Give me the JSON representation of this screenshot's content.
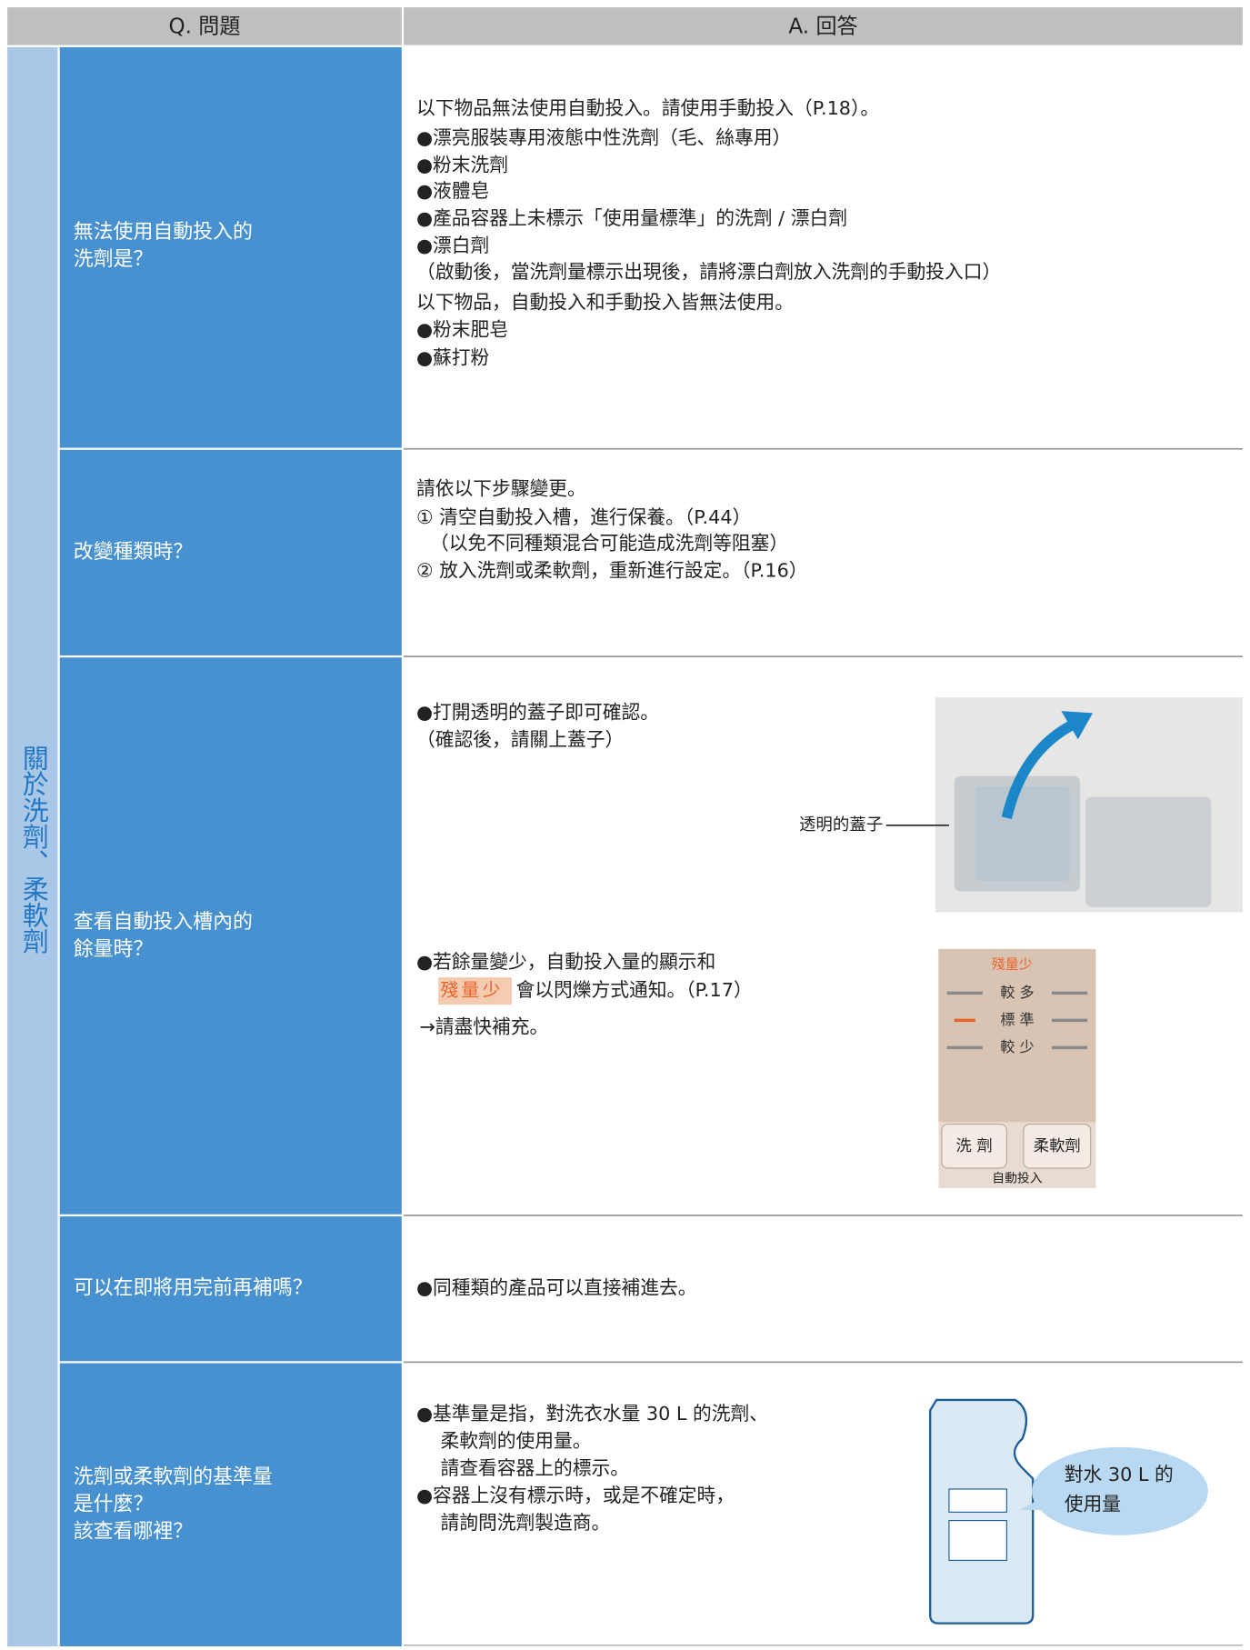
{
  "header": {
    "question": "Q. 問題",
    "answer": "A. 回答"
  },
  "section": "關於洗劑、柔軟劑",
  "rows": [
    {
      "question": [
        "無法使用自動投入的",
        "洗劑是？"
      ],
      "answer": [
        "以下物品無法使用自動投入。請使用手動投入（P.18）。",
        "●漂亮服裝專用液態中性洗劑（毛、絲專用）",
        "●粉末洗劑",
        "●液體皂",
        "●產品容器上未標示「使用量標準」的洗劑 / 漂白劑",
        "●漂白劑",
        "（啟動後，當洗劑量標示出現後，請將漂白劑放入洗劑的手動投入口）",
        "以下物品，自動投入和手動投入皆無法使用。",
        "●粉末肥皂",
        "●蘇打粉"
      ]
    },
    {
      "question": [
        "改變種類時？"
      ],
      "answer": [
        "請依以下步驟變更。",
        "① 清空自動投入槽，進行保養。（P.44）",
        "（以免不同種類混合可能造成洗劑等阻塞）",
        "② 放入洗劑或柔軟劑，重新進行設定。（P.16）"
      ]
    },
    {
      "question": [
        "查看自動投入槽內的",
        "餘量時？"
      ],
      "answer": [
        "●打開透明的蓋子即可確認。",
        "（確認後，請關上蓋子）",
        "●若餘量變少，自動投入量的顯示和",
        {
          "highlight": "殘量少",
          "text": "會以閃爍方式通知。（P.17）"
        },
        "→請盡快補充。"
      ]
    },
    {
      "question": [
        "可以在即將用完前再補嗎？"
      ],
      "answer": [
        "●同種類的產品可以直接補進去。"
      ]
    },
    {
      "question": [
        "洗劑或柔軟劑的基準量",
        "是什麼？",
        "該查看哪裡？"
      ],
      "answer": [
        "●基準量是指，對洗衣水量 30 L 的洗劑、",
        "柔軟劑的使用量。",
        "請查看容器上的標示。",
        "●容器上沒有標示時，或是不確定時，",
        "請詢問洗劑製造商。"
      ]
    }
  ],
  "figures": {
    "lid_label": "透明的蓋子",
    "panel": {
      "remaining": "殘量少",
      "more": "較 多",
      "standard": "標 準",
      "less": "較 少",
      "detergent": "洗 劑",
      "softener": "柔軟劑",
      "auto": "自動投入"
    },
    "bubble": [
      "對水 30 L 的",
      "使用量"
    ]
  }
}
